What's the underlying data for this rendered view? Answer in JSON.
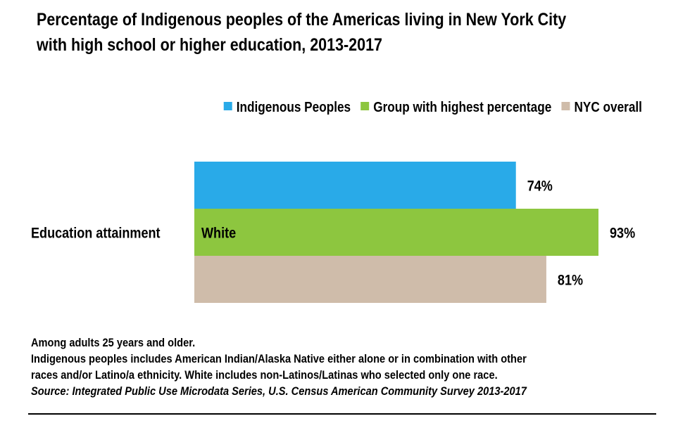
{
  "title_lines": [
    "Percentage of Indigenous peoples of the Americas living in New York City",
    "with high school or higher education, 2013-2017"
  ],
  "chart_data": {
    "type": "bar",
    "orientation": "horizontal",
    "categories": [
      "Education attainment"
    ],
    "series": [
      {
        "name": "Indigenous Peoples",
        "values": [
          74
        ],
        "value_labels": [
          "74%"
        ],
        "color": "#29aae8"
      },
      {
        "name": "Group with highest percentage",
        "values": [
          93
        ],
        "value_labels": [
          "93%"
        ],
        "color": "#8dc63f",
        "bar_label": "White"
      },
      {
        "name": "NYC overall",
        "values": [
          81
        ],
        "value_labels": [
          "81%"
        ],
        "color": "#cfbcaa"
      }
    ],
    "legend_position": "top-right",
    "grid": false,
    "xlim": [
      0,
      93
    ]
  },
  "notes": {
    "line1": "Among adults 25 years and older.",
    "line2": "Indigenous peoples includes American Indian/Alaska Native either alone or in combination with other",
    "line3": "races and/or Latino/a ethnicity. White includes non-Latinos/Latinas who selected only one race.",
    "source": "Source: Integrated Public Use Microdata Series, U.S. Census American Community Survey 2013-2017"
  }
}
